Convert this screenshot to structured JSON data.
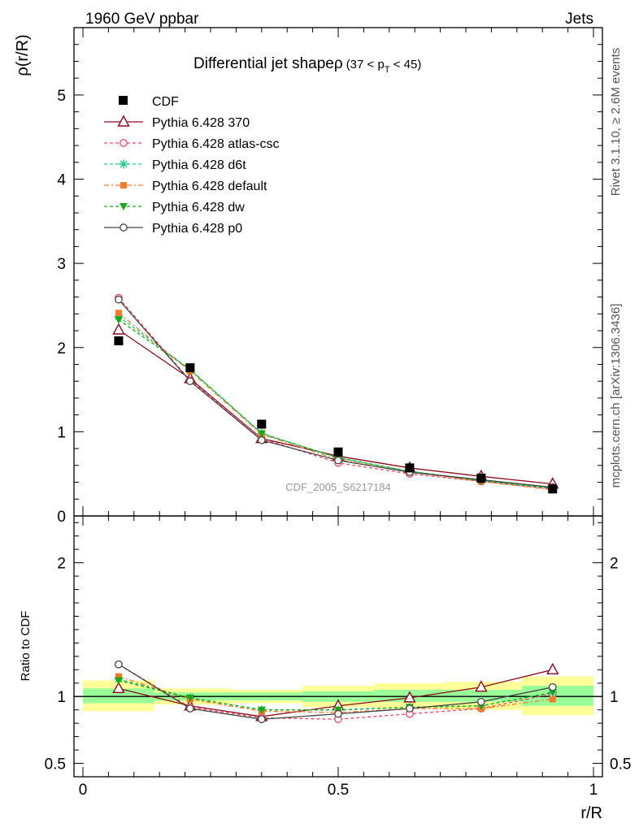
{
  "header": {
    "left": "1960 GeV ppbar",
    "right": "Jets",
    "side_top": "Rivet 3.1.10, ≥ 2.6M events",
    "side_bottom": "mcplots.cern.ch [arXiv:1306.3436]",
    "watermark": "CDF_2005_S6217184"
  },
  "chart_data": [
    {
      "type": "line",
      "title_main": "Differential jet shapeρ",
      "title_sub_pre": "(37 < p",
      "title_sub_idx": "T",
      "title_sub_post": " < 45)",
      "xlabel": "r/R",
      "ylabel": "ρ(r/R)",
      "xlim": [
        -0.0175,
        1.0175
      ],
      "ylim": [
        0,
        5.8
      ],
      "yticks": [
        {
          "v": 0,
          "t": "0"
        },
        {
          "v": 1,
          "t": "1"
        },
        {
          "v": 2,
          "t": "2"
        },
        {
          "v": 3,
          "t": "3"
        },
        {
          "v": 4,
          "t": "4"
        },
        {
          "v": 5,
          "t": "5"
        }
      ],
      "x": [
        0.07,
        0.21,
        0.35,
        0.5,
        0.64,
        0.78,
        0.92
      ],
      "data": {
        "name": "CDF",
        "values": [
          2.08,
          1.76,
          1.09,
          0.76,
          0.57,
          0.45,
          0.32
        ]
      },
      "series": [
        {
          "name": "Pythia 6.428 370",
          "color": "#8b0a1a",
          "dash": "",
          "marker": "triangle-open",
          "values": [
            2.21,
            1.63,
            0.92,
            0.71,
            0.57,
            0.47,
            0.38
          ]
        },
        {
          "name": "Pythia 6.428 atlas-csc",
          "color": "#e8466a",
          "dash": "4,3",
          "marker": "circle-open",
          "values": [
            2.59,
            1.61,
            0.92,
            0.63,
            0.5,
            0.41,
            0.32
          ]
        },
        {
          "name": "Pythia 6.428 d6t",
          "color": "#1ec98a",
          "dash": "4,3",
          "marker": "star",
          "values": [
            2.37,
            1.74,
            0.98,
            0.69,
            0.53,
            0.42,
            0.33
          ]
        },
        {
          "name": "Pythia 6.428 default",
          "color": "#f07b2f",
          "dash": "6,3,2,3",
          "marker": "square",
          "values": [
            2.41,
            1.72,
            0.97,
            0.67,
            0.52,
            0.41,
            0.31
          ]
        },
        {
          "name": "Pythia 6.428 dw",
          "color": "#18a818",
          "dash": "4,3",
          "marker": "triangle-down",
          "values": [
            2.33,
            1.74,
            0.98,
            0.69,
            0.53,
            0.42,
            0.33
          ]
        },
        {
          "name": "Pythia 6.428 p0",
          "color": "#444444",
          "dash": "",
          "marker": "circle-open",
          "values": [
            2.57,
            1.6,
            0.9,
            0.66,
            0.52,
            0.43,
            0.34
          ]
        }
      ]
    },
    {
      "type": "line",
      "xlabel": "r/R",
      "ylabel": "Ratio to CDF",
      "ylim": [
        0.4,
        2.35
      ],
      "yticks": [
        {
          "v": 0.5,
          "t": "0.5"
        },
        {
          "v": 1,
          "t": "1"
        },
        {
          "v": 2,
          "t": "2"
        }
      ],
      "xticks": [
        {
          "v": 0,
          "t": "0"
        },
        {
          "v": 0.5,
          "t": "0.5"
        },
        {
          "v": 1,
          "t": "1"
        }
      ],
      "bands": [
        {
          "x0": 0.0,
          "x1": 0.14,
          "y1": [
            0.95,
            1.06
          ],
          "y2": [
            0.89,
            1.12
          ]
        },
        {
          "x0": 0.14,
          "x1": 0.29,
          "y1": [
            0.97,
            1.03
          ],
          "y2": [
            0.94,
            1.06
          ]
        },
        {
          "x0": 0.29,
          "x1": 0.43,
          "y1": [
            0.97,
            1.03
          ],
          "y2": [
            0.95,
            1.05
          ]
        },
        {
          "x0": 0.43,
          "x1": 0.57,
          "y1": [
            0.96,
            1.04
          ],
          "y2": [
            0.92,
            1.08
          ]
        },
        {
          "x0": 0.57,
          "x1": 0.71,
          "y1": [
            0.96,
            1.05
          ],
          "y2": [
            0.91,
            1.1
          ]
        },
        {
          "x0": 0.71,
          "x1": 0.86,
          "y1": [
            0.96,
            1.05
          ],
          "y2": [
            0.9,
            1.11
          ]
        },
        {
          "x0": 0.86,
          "x1": 1.0,
          "y1": [
            0.93,
            1.08
          ],
          "y2": [
            0.86,
            1.15
          ]
        }
      ],
      "series": [
        {
          "name": "Pythia 6.428 370",
          "color": "#8b0a1a",
          "dash": "",
          "marker": "triangle-open",
          "values": [
            1.06,
            0.93,
            0.85,
            0.93,
            0.99,
            1.07,
            1.2
          ]
        },
        {
          "name": "Pythia 6.428 atlas-csc",
          "color": "#e8466a",
          "dash": "4,3",
          "marker": "circle-open",
          "values": [
            1.24,
            0.92,
            0.84,
            0.83,
            0.87,
            0.91,
            1.02
          ]
        },
        {
          "name": "Pythia 6.428 d6t",
          "color": "#1ec98a",
          "dash": "4,3",
          "marker": "star",
          "values": [
            1.13,
            0.99,
            0.9,
            0.9,
            0.92,
            0.93,
            1.03
          ]
        },
        {
          "name": "Pythia 6.428 default",
          "color": "#f07b2f",
          "dash": "6,3,2,3",
          "marker": "square",
          "values": [
            1.15,
            0.98,
            0.89,
            0.88,
            0.91,
            0.91,
            0.98
          ]
        },
        {
          "name": "Pythia 6.428 dw",
          "color": "#18a818",
          "dash": "4,3",
          "marker": "triangle-down",
          "values": [
            1.12,
            0.99,
            0.9,
            0.9,
            0.92,
            0.93,
            1.03
          ]
        },
        {
          "name": "Pythia 6.428 p0",
          "color": "#444444",
          "dash": "",
          "marker": "circle-open",
          "values": [
            1.24,
            0.91,
            0.83,
            0.87,
            0.91,
            0.96,
            1.07
          ]
        }
      ]
    }
  ]
}
